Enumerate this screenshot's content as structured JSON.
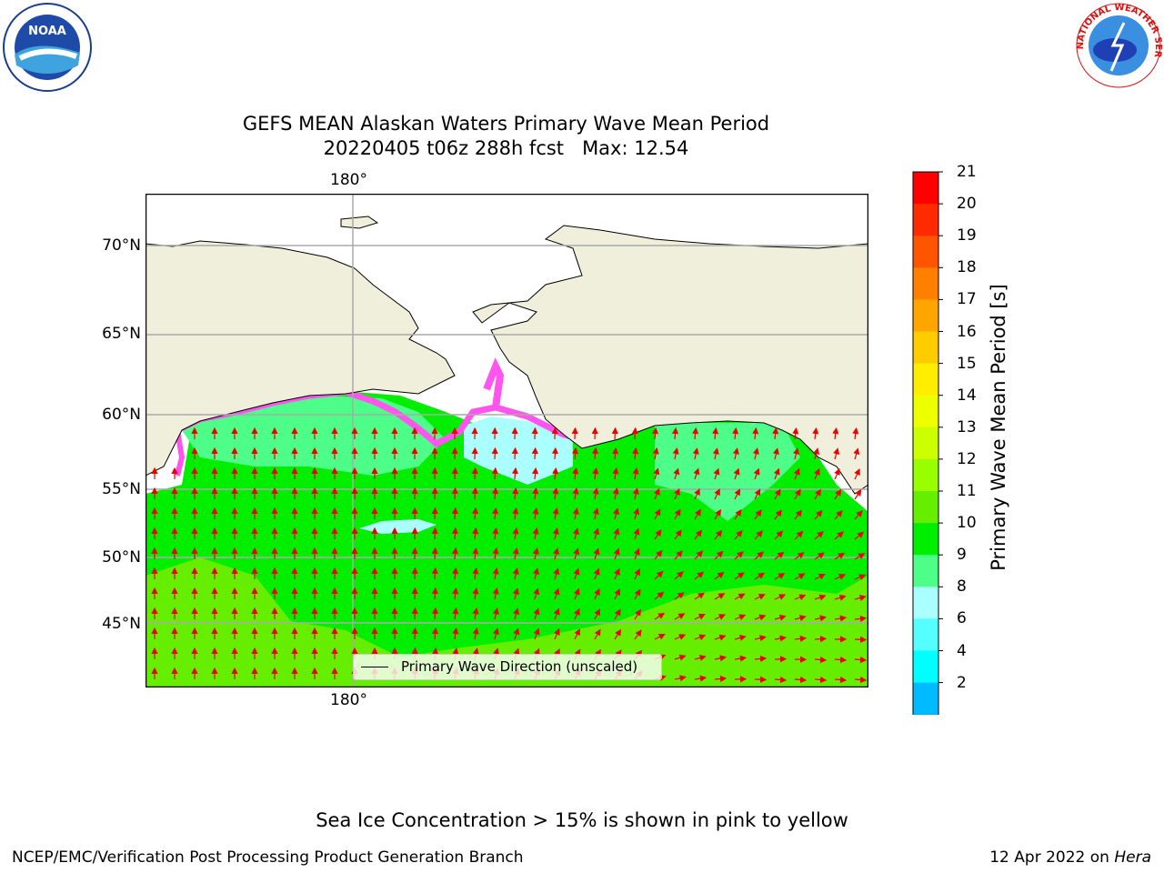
{
  "title": {
    "line1": "GEFS MEAN Alaskan Waters Primary Wave Mean Period",
    "line2": "20220405 t06z 288h fcst   Max: 12.54"
  },
  "map": {
    "lat_labels": [
      "70°N",
      "65°N",
      "60°N",
      "55°N",
      "50°N",
      "45°N"
    ],
    "lon_label_top": "180°",
    "lon_label_bottom": "180°",
    "legend_label": "Primary Wave Direction (unscaled)"
  },
  "colorbar": {
    "label": "Primary Wave Mean Period [s]",
    "ticks": [
      "21",
      "20",
      "19",
      "18",
      "17",
      "16",
      "15",
      "14",
      "13",
      "12",
      "11",
      "10",
      "9",
      "8",
      "6",
      "4",
      "2"
    ],
    "colors": [
      "#ff0000",
      "#ff2a00",
      "#ff5500",
      "#ff7f00",
      "#ffa500",
      "#ffcc00",
      "#ffee00",
      "#eeff00",
      "#ccff00",
      "#99ff00",
      "#66ee00",
      "#00ee00",
      "#4dff88",
      "#aaffff",
      "#55ffff",
      "#00ffff",
      "#00bbff",
      "#0077ff"
    ],
    "extend_color": "#0000ff"
  },
  "note": "Sea Ice Concentration > 15% is shown in pink to yellow",
  "footer": {
    "left": "NCEP/EMC/Verification Post Processing Product Generation Branch",
    "date": "12 Apr 2022 on ",
    "machine": "Hera"
  },
  "logos": {
    "left": "NOAA",
    "right_top": "NATIONAL WEATHER SERVICE"
  }
}
